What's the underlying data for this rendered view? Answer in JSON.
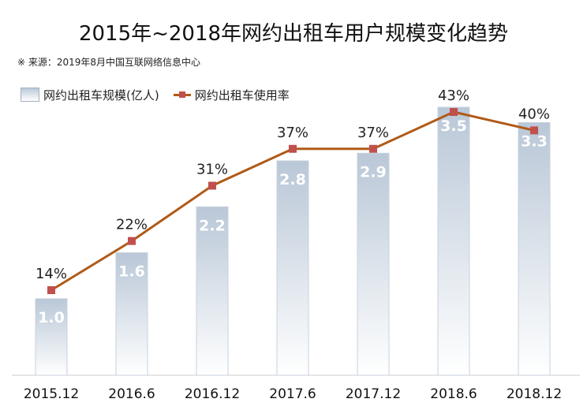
{
  "chart_data": {
    "type": "bar",
    "title": "2015年~2018年网约出租车用户规模变化趋势",
    "source": "※ 来源：2019年8月中国互联网络信息中心",
    "categories": [
      "2015.12",
      "2016.6",
      "2016.12",
      "2017.6",
      "2017.12",
      "2018.6",
      "2018.12"
    ],
    "series": [
      {
        "name": "网约出租车规模(亿人)",
        "type": "bar",
        "values": [
          1.0,
          1.6,
          2.2,
          2.8,
          2.9,
          3.5,
          3.3
        ],
        "labels": [
          "1.0",
          "1.6",
          "2.2",
          "2.8",
          "2.9",
          "3.5",
          "3.3"
        ]
      },
      {
        "name": "网约出租车使用率",
        "type": "line",
        "values": [
          14,
          22,
          31,
          37,
          37,
          43,
          40
        ],
        "labels": [
          "14%",
          "22%",
          "31%",
          "37%",
          "37%",
          "43%",
          "40%"
        ]
      }
    ],
    "y_bar_range": [
      0,
      3.5
    ],
    "y_line_range": [
      0,
      43
    ],
    "grid": false,
    "legend_position": "top-left",
    "colors": {
      "bar_top": "#b9c7d7",
      "bar_bottom": "#ffffff",
      "line": "#b05a17",
      "marker": "#c0504d"
    }
  }
}
